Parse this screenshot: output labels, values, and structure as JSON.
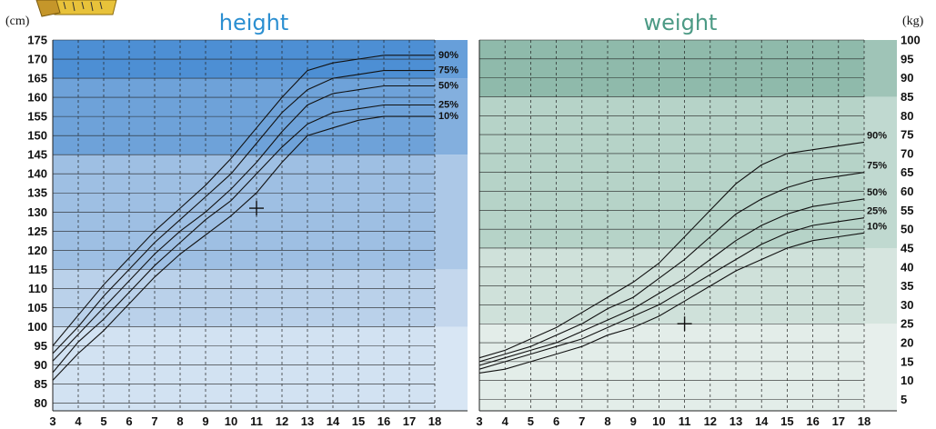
{
  "chart_data": [
    {
      "type": "line",
      "title": "height",
      "ylabel": "(cm)",
      "xlim": [
        3,
        18
      ],
      "ylim": [
        78,
        175
      ],
      "x_ticks": [
        3,
        4,
        5,
        6,
        7,
        8,
        9,
        10,
        11,
        12,
        13,
        14,
        15,
        16,
        17,
        18
      ],
      "y_ticks": [
        80,
        85,
        90,
        95,
        100,
        105,
        110,
        115,
        120,
        125,
        130,
        135,
        140,
        145,
        150,
        155,
        160,
        165,
        170,
        175
      ],
      "grid": true,
      "title_color": "#2b8fd1",
      "bands": [
        {
          "from": 78,
          "to": 100,
          "color": "#d2e2f2"
        },
        {
          "from": 100,
          "to": 115,
          "color": "#bad1ea"
        },
        {
          "from": 115,
          "to": 145,
          "color": "#9ebfe3"
        },
        {
          "from": 145,
          "to": 165,
          "color": "#6ea2d9"
        },
        {
          "from": 165,
          "to": 175,
          "color": "#4d8fd4"
        }
      ],
      "series": [
        {
          "name": "90%",
          "x": [
            3,
            4,
            5,
            6,
            7,
            8,
            9,
            10,
            11,
            12,
            13,
            14,
            15,
            16,
            17,
            18
          ],
          "values": [
            95,
            103,
            111,
            118,
            125,
            131,
            137,
            144,
            152,
            160,
            167,
            169,
            170,
            171,
            171,
            171
          ]
        },
        {
          "name": "75%",
          "x": [
            3,
            4,
            5,
            6,
            7,
            8,
            9,
            10,
            11,
            12,
            13,
            14,
            15,
            16,
            17,
            18
          ],
          "values": [
            93,
            100,
            108,
            115,
            122,
            128,
            134,
            140,
            148,
            156,
            162,
            165,
            166,
            167,
            167,
            167
          ]
        },
        {
          "name": "50%",
          "x": [
            3,
            4,
            5,
            6,
            7,
            8,
            9,
            10,
            11,
            12,
            13,
            14,
            15,
            16,
            17,
            18
          ],
          "values": [
            91,
            98,
            105,
            112,
            119,
            125,
            130,
            136,
            143,
            151,
            158,
            161,
            162,
            163,
            163,
            163
          ]
        },
        {
          "name": "25%",
          "x": [
            3,
            4,
            5,
            6,
            7,
            8,
            9,
            10,
            11,
            12,
            13,
            14,
            15,
            16,
            17,
            18
          ],
          "values": [
            88,
            96,
            102,
            109,
            116,
            122,
            128,
            133,
            140,
            147,
            153,
            156,
            157,
            158,
            158,
            158
          ]
        },
        {
          "name": "10%",
          "x": [
            3,
            4,
            5,
            6,
            7,
            8,
            9,
            10,
            11,
            12,
            13,
            14,
            15,
            16,
            17,
            18
          ],
          "values": [
            86,
            93,
            99,
            106,
            113,
            119,
            124,
            129,
            135,
            143,
            150,
            152,
            154,
            155,
            155,
            155
          ]
        }
      ],
      "marker": {
        "x": 11,
        "y": 131,
        "symbol": "+"
      }
    },
    {
      "type": "line",
      "title": "weight",
      "ylabel": "(kg)",
      "xlim": [
        3,
        18
      ],
      "ylim": [
        2,
        100
      ],
      "x_ticks": [
        3,
        4,
        5,
        6,
        7,
        8,
        9,
        10,
        11,
        12,
        13,
        14,
        15,
        16,
        17,
        18
      ],
      "y_ticks": [
        5,
        10,
        15,
        20,
        25,
        30,
        35,
        40,
        45,
        50,
        55,
        60,
        65,
        70,
        75,
        80,
        85,
        90,
        95,
        100
      ],
      "grid": true,
      "title_color": "#4c9a85",
      "bands": [
        {
          "from": 2,
          "to": 25,
          "color": "#e3ede9"
        },
        {
          "from": 25,
          "to": 45,
          "color": "#cfe1da"
        },
        {
          "from": 45,
          "to": 85,
          "color": "#b6d3c8"
        },
        {
          "from": 85,
          "to": 100,
          "color": "#8fbaab"
        }
      ],
      "series": [
        {
          "name": "90%",
          "x": [
            3,
            4,
            5,
            6,
            7,
            8,
            9,
            10,
            11,
            12,
            13,
            14,
            15,
            16,
            17,
            18
          ],
          "values": [
            16,
            18,
            21,
            24,
            28,
            32,
            36,
            41,
            48,
            55,
            62,
            67,
            70,
            71,
            72,
            73
          ]
        },
        {
          "name": "75%",
          "x": [
            3,
            4,
            5,
            6,
            7,
            8,
            9,
            10,
            11,
            12,
            13,
            14,
            15,
            16,
            17,
            18
          ],
          "values": [
            15,
            17,
            19,
            22,
            25,
            29,
            32,
            37,
            42,
            48,
            54,
            58,
            61,
            63,
            64,
            65
          ]
        },
        {
          "name": "50%",
          "x": [
            3,
            4,
            5,
            6,
            7,
            8,
            9,
            10,
            11,
            12,
            13,
            14,
            15,
            16,
            17,
            18
          ],
          "values": [
            14,
            16,
            18,
            20,
            23,
            26,
            29,
            33,
            37,
            42,
            47,
            51,
            54,
            56,
            57,
            58
          ]
        },
        {
          "name": "25%",
          "x": [
            3,
            4,
            5,
            6,
            7,
            8,
            9,
            10,
            11,
            12,
            13,
            14,
            15,
            16,
            17,
            18
          ],
          "values": [
            13,
            15,
            17,
            19,
            21,
            24,
            27,
            30,
            34,
            38,
            42,
            46,
            49,
            51,
            52,
            53
          ]
        },
        {
          "name": "10%",
          "x": [
            3,
            4,
            5,
            6,
            7,
            8,
            9,
            10,
            11,
            12,
            13,
            14,
            15,
            16,
            17,
            18
          ],
          "values": [
            12,
            13,
            15,
            17,
            19,
            22,
            24,
            27,
            31,
            35,
            39,
            42,
            45,
            47,
            48,
            49
          ]
        }
      ],
      "marker": {
        "x": 11,
        "y": 25,
        "symbol": "+"
      }
    }
  ],
  "icons": {
    "corner": "tape-measure-icon"
  }
}
